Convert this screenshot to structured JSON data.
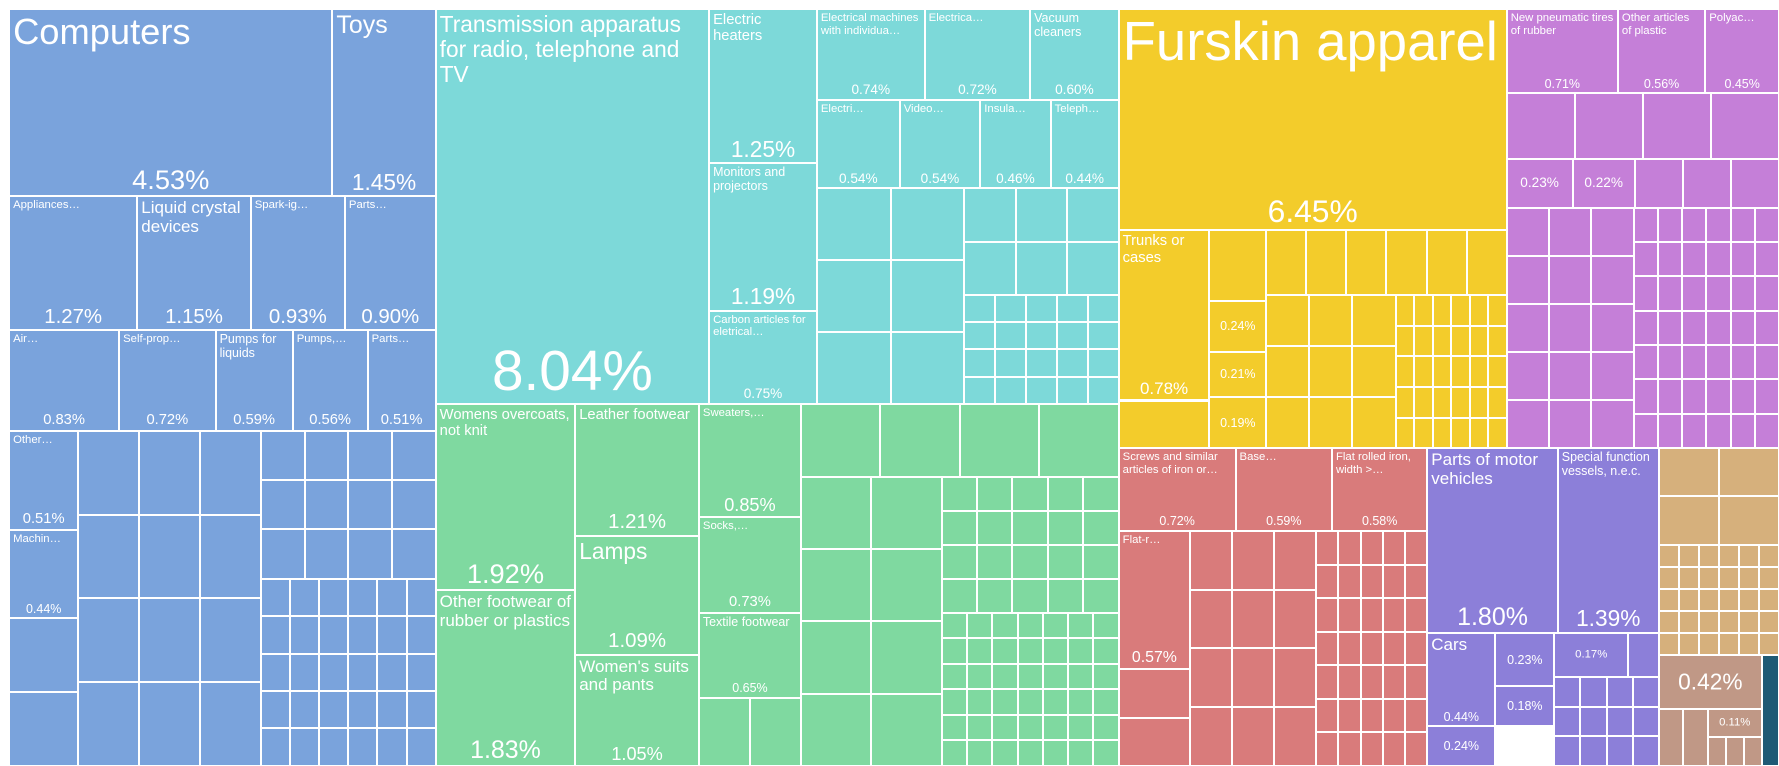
{
  "chart_data": {
    "type": "treemap",
    "labels": [
      "Computers",
      "Toys",
      "Appliances…",
      "Liquid crystal devices",
      "Spark-ig…",
      "Parts…",
      "Air…",
      "Self-prop…",
      "Pumps for liquids",
      "Pumps,…",
      "Parts…",
      "Other…",
      "Machin…",
      "Transmission apparatus for radio, telephone and TV",
      "Electric heaters",
      "Monitors and projectors",
      "Carbon articles for eletrical…",
      "Electrical machines with individua…",
      "Electrica…",
      "Vacuum cleaners",
      "Electri…",
      "Video…",
      "Insula…",
      "Teleph…",
      "Womens overcoats, not knit",
      "Other footwear of rubber or plastics",
      "Leather footwear",
      "Lamps",
      "Women's suits and pants",
      "Sweaters,…",
      "Socks,…",
      "Textile footwear",
      "Furskin apparel",
      "Trunks or cases",
      null,
      null,
      null,
      "New pneumatic tires of rubber",
      "Other articles of plastic",
      "Polyac…",
      null,
      null,
      "Screws and similar articles of iron or…",
      "Base…",
      "Flat rolled iron, width >…",
      "Flat-r…",
      "Parts of motor vehicles",
      "Special function vessels, n.e.c.",
      "Cars",
      null,
      null,
      null,
      null,
      null,
      null
    ],
    "values": [
      4.53,
      1.45,
      1.27,
      1.15,
      0.93,
      0.9,
      0.83,
      0.72,
      0.59,
      0.56,
      0.51,
      0.51,
      0.44,
      8.04,
      1.25,
      1.19,
      0.75,
      0.74,
      0.72,
      0.6,
      0.54,
      0.54,
      0.46,
      0.44,
      1.92,
      1.83,
      1.21,
      1.09,
      1.05,
      0.85,
      0.73,
      0.65,
      6.45,
      0.78,
      0.24,
      0.21,
      0.19,
      0.71,
      0.56,
      0.45,
      0.23,
      0.22,
      0.72,
      0.59,
      0.58,
      0.57,
      1.8,
      1.39,
      0.44,
      0.24,
      0.23,
      0.18,
      0.17,
      0.42,
      0.11
    ],
    "value_labels": [
      "4.53%",
      "1.45%",
      "1.27%",
      "1.15%",
      "0.93%",
      "0.90%",
      "0.83%",
      "0.72%",
      "0.59%",
      "0.56%",
      "0.51%",
      "0.51%",
      "0.44%",
      "8.04%",
      "1.25%",
      "1.19%",
      "0.75%",
      "0.74%",
      "0.72%",
      "0.60%",
      "0.54%",
      "0.54%",
      "0.46%",
      "0.44%",
      "1.92%",
      "1.83%",
      "1.21%",
      "1.09%",
      "1.05%",
      "0.85%",
      "0.73%",
      "0.65%",
      "6.45%",
      "0.78%",
      "0.24%",
      "0.21%",
      "0.19%",
      "0.71%",
      "0.56%",
      "0.45%",
      "0.23%",
      "0.22%",
      "0.72%",
      "0.59%",
      "0.58%",
      "0.57%",
      "1.80%",
      "1.39%",
      "0.44%",
      "0.24%",
      "0.23%",
      "0.18%",
      "0.17%",
      "0.42%",
      "0.11%"
    ],
    "colors": [
      "#7aa3dc",
      "#7aa3dc",
      "#7aa3dc",
      "#7aa3dc",
      "#7aa3dc",
      "#7aa3dc",
      "#7aa3dc",
      "#7aa3dc",
      "#7aa3dc",
      "#7aa3dc",
      "#7aa3dc",
      "#7aa3dc",
      "#7aa3dc",
      "#7dd9d9",
      "#7dd9d9",
      "#7dd9d9",
      "#7dd9d9",
      "#7dd9d9",
      "#7dd9d9",
      "#7dd9d9",
      "#7dd9d9",
      "#7dd9d9",
      "#7dd9d9",
      "#7dd9d9",
      "#7fd9a0",
      "#7fd9a0",
      "#7fd9a0",
      "#7fd9a0",
      "#7fd9a0",
      "#7fd9a0",
      "#7fd9a0",
      "#7fd9a0",
      "#f3cc2b",
      "#f3cc2b",
      "#f3cc2b",
      "#f3cc2b",
      "#f3cc2b",
      "#c57fd8",
      "#c57fd8",
      "#c57fd8",
      "#c57fd8",
      "#c57fd8",
      "#d97b7b",
      "#d97b7b",
      "#d97b7b",
      "#d97b7b",
      "#8c7fd9",
      "#8c7fd9",
      "#8c7fd9",
      "#8c7fd9",
      "#8c7fd9",
      "#8c7fd9",
      "#8c7fd9",
      "#c09886",
      "#c09886"
    ]
  }
}
